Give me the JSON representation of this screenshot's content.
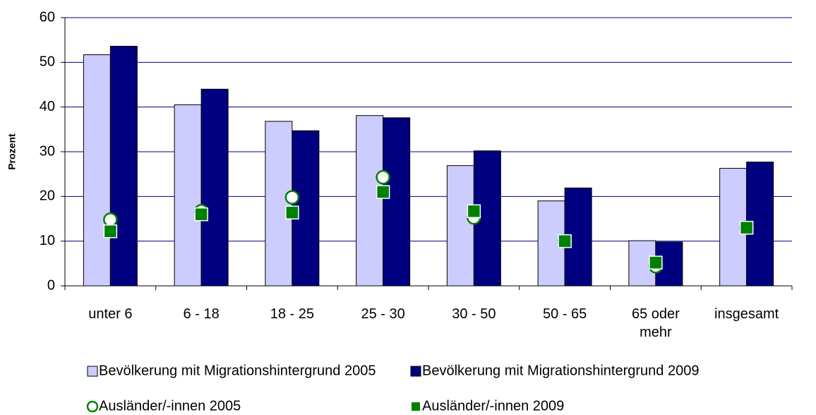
{
  "chart_data": {
    "type": "bar",
    "y_label": "Prozent",
    "categories": [
      "unter 6",
      "6 - 18",
      "18 - 25",
      "25 - 30",
      "30 - 50",
      "50 - 65",
      "65 oder mehr",
      "insgesamt"
    ],
    "series": [
      {
        "name": "Bevölkerung mit Migrationshintergrund 2005",
        "type": "bar",
        "color": "#ccccff",
        "values": [
          51.7,
          40.5,
          36.8,
          38.1,
          26.9,
          19.0,
          10.1,
          26.3
        ]
      },
      {
        "name": "Bevölkerung mit Migrationshintergrund 2009",
        "type": "bar",
        "color": "#000080",
        "values": [
          53.6,
          44.0,
          34.7,
          37.6,
          30.2,
          21.9,
          9.8,
          27.7
        ]
      },
      {
        "name": "Ausländer/-innen 2005",
        "type": "marker",
        "marker": "circle",
        "color": "#008000",
        "values": [
          14.8,
          16.7,
          19.8,
          24.3,
          15.3,
          10.0,
          4.4,
          13.0
        ]
      },
      {
        "name": "Ausländer/-innen 2009",
        "type": "marker",
        "marker": "square",
        "color": "#008000",
        "values": [
          12.2,
          16.0,
          16.4,
          21.0,
          16.7,
          10.0,
          5.2,
          13.0
        ]
      }
    ],
    "ylim": [
      0,
      60
    ],
    "yticks": [
      0,
      10,
      20,
      30,
      40,
      50,
      60
    ],
    "grid": true
  }
}
